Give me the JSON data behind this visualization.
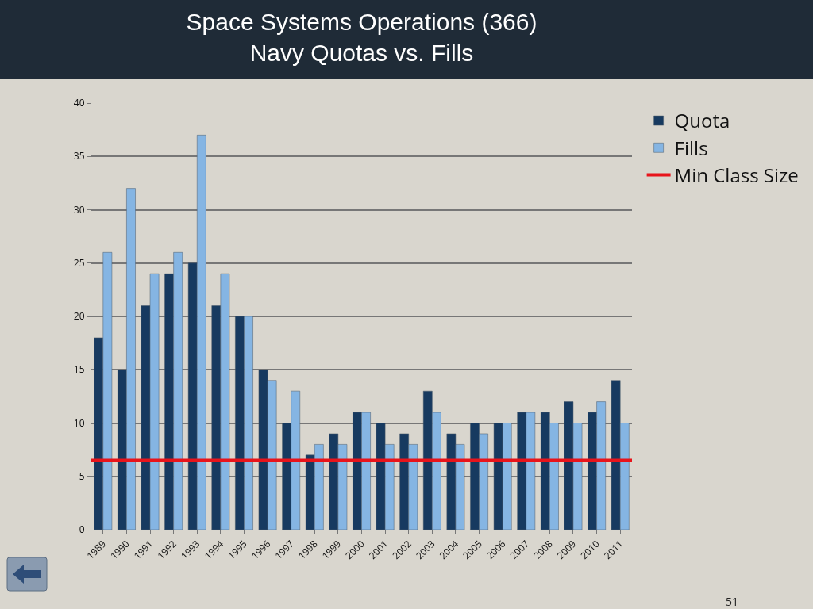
{
  "chart_data": {
    "type": "bar",
    "title": "Space Systems Operations (366)\nNavy Quotas vs. Fills",
    "categories": [
      "1989",
      "1990",
      "1991",
      "1992",
      "1993",
      "1994",
      "1995",
      "1996",
      "1997",
      "1998",
      "1999",
      "2000",
      "2001",
      "2002",
      "2003",
      "2004",
      "2005",
      "2006",
      "2007",
      "2008",
      "2009",
      "2010",
      "2011"
    ],
    "series": [
      {
        "name": "Quota",
        "color": "#173a60",
        "values": [
          18,
          15,
          21,
          24,
          25,
          21,
          20,
          15,
          10,
          7,
          9,
          11,
          10,
          9,
          13,
          9,
          10,
          10,
          11,
          11,
          12,
          11,
          14
        ]
      },
      {
        "name": "Fills",
        "color": "#85b5e3",
        "values": [
          26,
          32,
          24,
          26,
          37,
          24,
          20,
          14,
          13,
          8,
          8,
          11,
          8,
          8,
          11,
          8,
          9,
          10,
          11,
          10,
          10,
          12,
          10
        ]
      }
    ],
    "ref_lines": [
      {
        "axis": "y",
        "value": 6.5,
        "label": "Min Class Size",
        "color": "#e8141b"
      }
    ],
    "ylim": [
      0,
      40
    ],
    "yticks": [
      0,
      5,
      10,
      15,
      20,
      25,
      30,
      35,
      40
    ],
    "grid": "y",
    "legend": "top right",
    "annotations": [
      "51"
    ]
  }
}
